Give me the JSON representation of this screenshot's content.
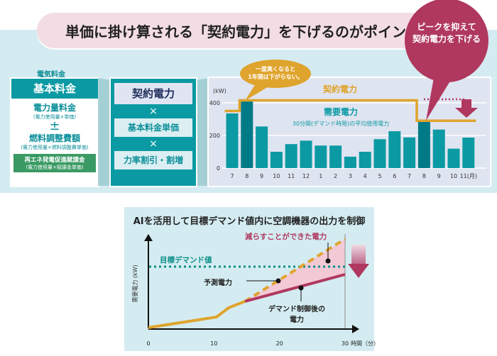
{
  "banner": {
    "title": "単価に掛け算される「契約電力」を下げるのがポイント"
  },
  "callout": {
    "line1": "ピークを抑えて",
    "line2": "契約電力を下げる"
  },
  "bill": {
    "label": "電気料金",
    "basic": "基本料金",
    "energy": "電力量料金",
    "energy_note": "(電力使用量×単価)",
    "plusminus": "±",
    "fuel": "燃料調整費額",
    "fuel_note": "(電力使用量×燃料調整費単価)",
    "renewable": "再エネ発電促進賦課金",
    "renewable_note": "(電力使用量×賦課金単価)"
  },
  "formula": {
    "contract": "契約電力",
    "times": "×",
    "unit_price": "基本料金単価",
    "power_factor": "力率割引・割増"
  },
  "bubble": {
    "line1": "一度高くなると",
    "line2": "1年間は下がらない。"
  },
  "colors": {
    "teal": "#0b9aa3",
    "dark_teal": "#007a87",
    "orange": "#dfa42d",
    "magenta": "#b0385f",
    "pink": "#f3c9d6",
    "green": "#3a9a64"
  },
  "chart_data": [
    {
      "type": "bar",
      "ylabel": "(kW)",
      "xlabel": "(月)",
      "ylim": [
        0,
        450
      ],
      "yticks": [
        0,
        200,
        400
      ],
      "categories": [
        "7",
        "8",
        "9",
        "10",
        "11",
        "12",
        "1",
        "2",
        "3",
        "4",
        "5",
        "6",
        "7",
        "8",
        "9",
        "10",
        "11"
      ],
      "series": [
        {
          "name": "需要電力",
          "values": [
            335,
            415,
            255,
            100,
            147,
            168,
            138,
            138,
            70,
            100,
            177,
            226,
            188,
            283,
            236,
            119,
            187
          ],
          "highlight": [
            1,
            13
          ]
        },
        {
          "name": "契約電力",
          "type": "step",
          "values": [
            350,
            415,
            415,
            415,
            415,
            415,
            415,
            415,
            415,
            415,
            415,
            415,
            415,
            290,
            290,
            290,
            290
          ]
        }
      ],
      "annotations": {
        "contract_label": "契約電力",
        "demand_label": "需要電力",
        "demand_sub": "30分間(デマンド時限)の平均使用電力"
      }
    },
    {
      "type": "line",
      "title": "AIを活用して目標デマンド値内に空調機器の出力を制御",
      "ylabel": "需要電力 (kW)",
      "xlabel": "時間（分）",
      "xticks": [
        0,
        10,
        20,
        30
      ],
      "labels": {
        "target": "目標デマンド値",
        "forecast": "予測電力",
        "reduced": "減らすことができた電力",
        "controlled1": "デマンド制御後の",
        "controlled2": "電力"
      }
    }
  ]
}
